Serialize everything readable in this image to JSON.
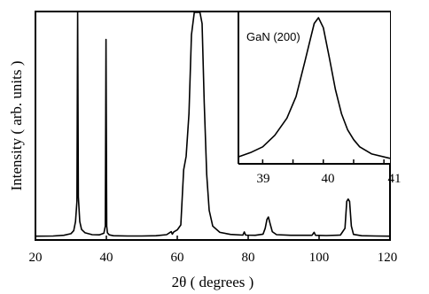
{
  "chart_data": [
    {
      "type": "line",
      "title": "",
      "xlabel": "2θ ( degrees )",
      "ylabel": "Intensity ( arb. units )",
      "xlim": [
        20,
        120
      ],
      "xticks": [
        20,
        40,
        60,
        80,
        100,
        120
      ],
      "xtick_labels": [
        "20",
        "40",
        "60",
        "80",
        "100",
        "120"
      ],
      "y_ticks_shown": false,
      "grid": false,
      "series": [
        {
          "x": [
            20,
            25,
            28,
            30,
            30.8,
            31.3,
            31.7,
            31.9,
            32.1,
            32.5,
            33,
            34,
            36,
            38,
            39.3,
            39.7,
            39.9,
            40.1,
            40.3,
            40.8,
            42,
            46,
            50,
            54,
            57,
            58.3,
            58.6,
            59,
            60,
            61,
            61.8,
            62.5,
            63.3,
            64,
            64.8,
            65.4,
            65.8,
            66.4,
            67,
            67.6,
            68.3,
            69,
            70,
            72,
            75,
            78.5,
            78.9,
            79.3,
            82,
            84.2,
            84.8,
            85.3,
            85.7,
            86.2,
            86.8,
            88,
            92,
            98,
            98.6,
            99,
            102,
            106,
            107.3,
            107.8,
            108.2,
            108.6,
            109.1,
            109.7,
            112,
            116,
            120
          ],
          "y": [
            0.5,
            0.6,
            0.9,
            1.6,
            3,
            7,
            16,
            100,
            18,
            7,
            3.5,
            2,
            1.2,
            1.1,
            1.8,
            5,
            88,
            5,
            2,
            1.1,
            0.7,
            0.6,
            0.6,
            0.7,
            1.2,
            2.5,
            1.4,
            2.4,
            3.3,
            5.5,
            30,
            36,
            55,
            90,
            100,
            100,
            100,
            100,
            95,
            60,
            28,
            12,
            5,
            2.2,
            1.3,
            1.0,
            2.4,
            1.0,
            0.9,
            1.4,
            4,
            8,
            9,
            6,
            2.5,
            1.2,
            0.9,
            0.9,
            2.2,
            0.9,
            0.8,
            1,
            4,
            16,
            17,
            16,
            5,
            1.3,
            0.7,
            0.6,
            0.5
          ]
        }
      ]
    },
    {
      "type": "line",
      "title": "GaN (200)",
      "xlim": [
        38.6,
        41.1
      ],
      "xticks": [
        39,
        40,
        41
      ],
      "xtick_labels": [
        "39",
        "40",
        "41"
      ],
      "y_ticks_shown": false,
      "grid": false,
      "series": [
        {
          "x": [
            38.6,
            38.8,
            39.0,
            39.2,
            39.4,
            39.55,
            39.7,
            39.78,
            39.85,
            39.92,
            40.0,
            40.1,
            40.2,
            40.3,
            40.4,
            40.5,
            40.6,
            40.8,
            41.1
          ],
          "y": [
            0.03,
            0.06,
            0.1,
            0.18,
            0.3,
            0.45,
            0.7,
            0.84,
            0.96,
            1.0,
            0.93,
            0.72,
            0.5,
            0.33,
            0.22,
            0.15,
            0.1,
            0.05,
            0.02
          ]
        }
      ]
    }
  ]
}
